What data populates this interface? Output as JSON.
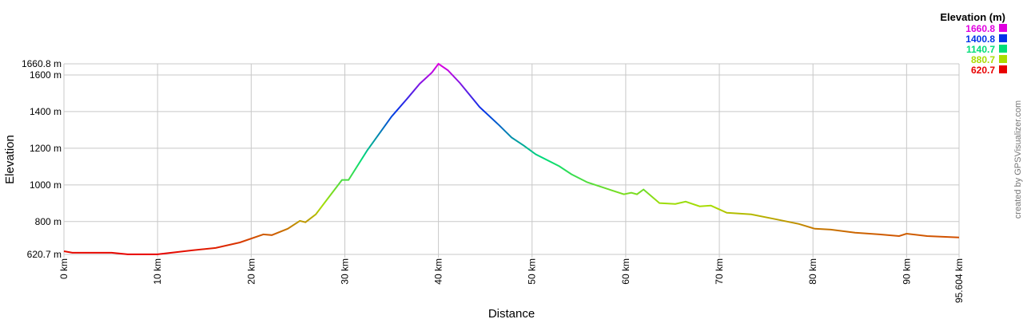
{
  "chart_data": {
    "type": "line",
    "xlabel": "Distance",
    "ylabel": "Elevation",
    "x_unit": "km",
    "y_unit": "m",
    "xlim": [
      0,
      95.604
    ],
    "ylim": [
      620.7,
      1660.8
    ],
    "grid": true,
    "x_ticks": [
      "0 km",
      "10 km",
      "20 km",
      "30 km",
      "40 km",
      "50 km",
      "60 km",
      "70 km",
      "80 km",
      "90 km",
      "95.604 km"
    ],
    "x_tick_values": [
      0,
      10,
      20,
      30,
      40,
      50,
      60,
      70,
      80,
      90,
      95.604
    ],
    "y_ticks": [
      "620.7 m",
      "800 m",
      "1000 m",
      "1200 m",
      "1400 m",
      "1600 m",
      "1660.8 m"
    ],
    "y_tick_values": [
      620.7,
      800,
      1000,
      1200,
      1400,
      1600,
      1660.8
    ],
    "legend": {
      "title": "Elevation (m)",
      "placement": "top-right",
      "entries": [
        {
          "label": "1660.8",
          "color": "#e000e0"
        },
        {
          "label": "1400.8",
          "color": "#0033e8"
        },
        {
          "label": "1140.7",
          "color": "#00dd77"
        },
        {
          "label": "880.7",
          "color": "#aadd00"
        },
        {
          "label": "620.7",
          "color": "#e80000"
        }
      ]
    },
    "series": [
      {
        "x": [
          0,
          0.9,
          5.1,
          6.8,
          10,
          13.7,
          16.2,
          18.8,
          21.3,
          22.2,
          23.9,
          25.2,
          25.8,
          26.9,
          28.2,
          29.7,
          30.4,
          32.4,
          35,
          36.7,
          38,
          39.3,
          40,
          41,
          42.3,
          44.4,
          46.5,
          47.8,
          49.1,
          50.4,
          52.9,
          54.2,
          55.9,
          58,
          59.8,
          60.6,
          61.2,
          61.9,
          63.6,
          65.3,
          66.4,
          67.9,
          69.1,
          70.8,
          73.4,
          76,
          78.5,
          80.2,
          81.9,
          84.5,
          87.1,
          89.2,
          90,
          92.2,
          95.604
        ],
        "y": [
          638,
          630,
          630,
          621,
          621,
          643,
          656,
          686,
          730,
          726,
          761,
          804,
          796,
          839,
          927,
          1027,
          1027,
          1189,
          1373,
          1473,
          1552,
          1613,
          1661,
          1626,
          1556,
          1425,
          1325,
          1259,
          1215,
          1167,
          1102,
          1058,
          1014,
          979,
          949,
          957,
          949,
          975,
          901,
          896,
          909,
          883,
          887,
          848,
          839,
          813,
          787,
          761,
          756,
          739,
          730,
          721,
          734,
          721,
          713
        ]
      }
    ]
  },
  "credit": "created by GPSVisualizer.com"
}
